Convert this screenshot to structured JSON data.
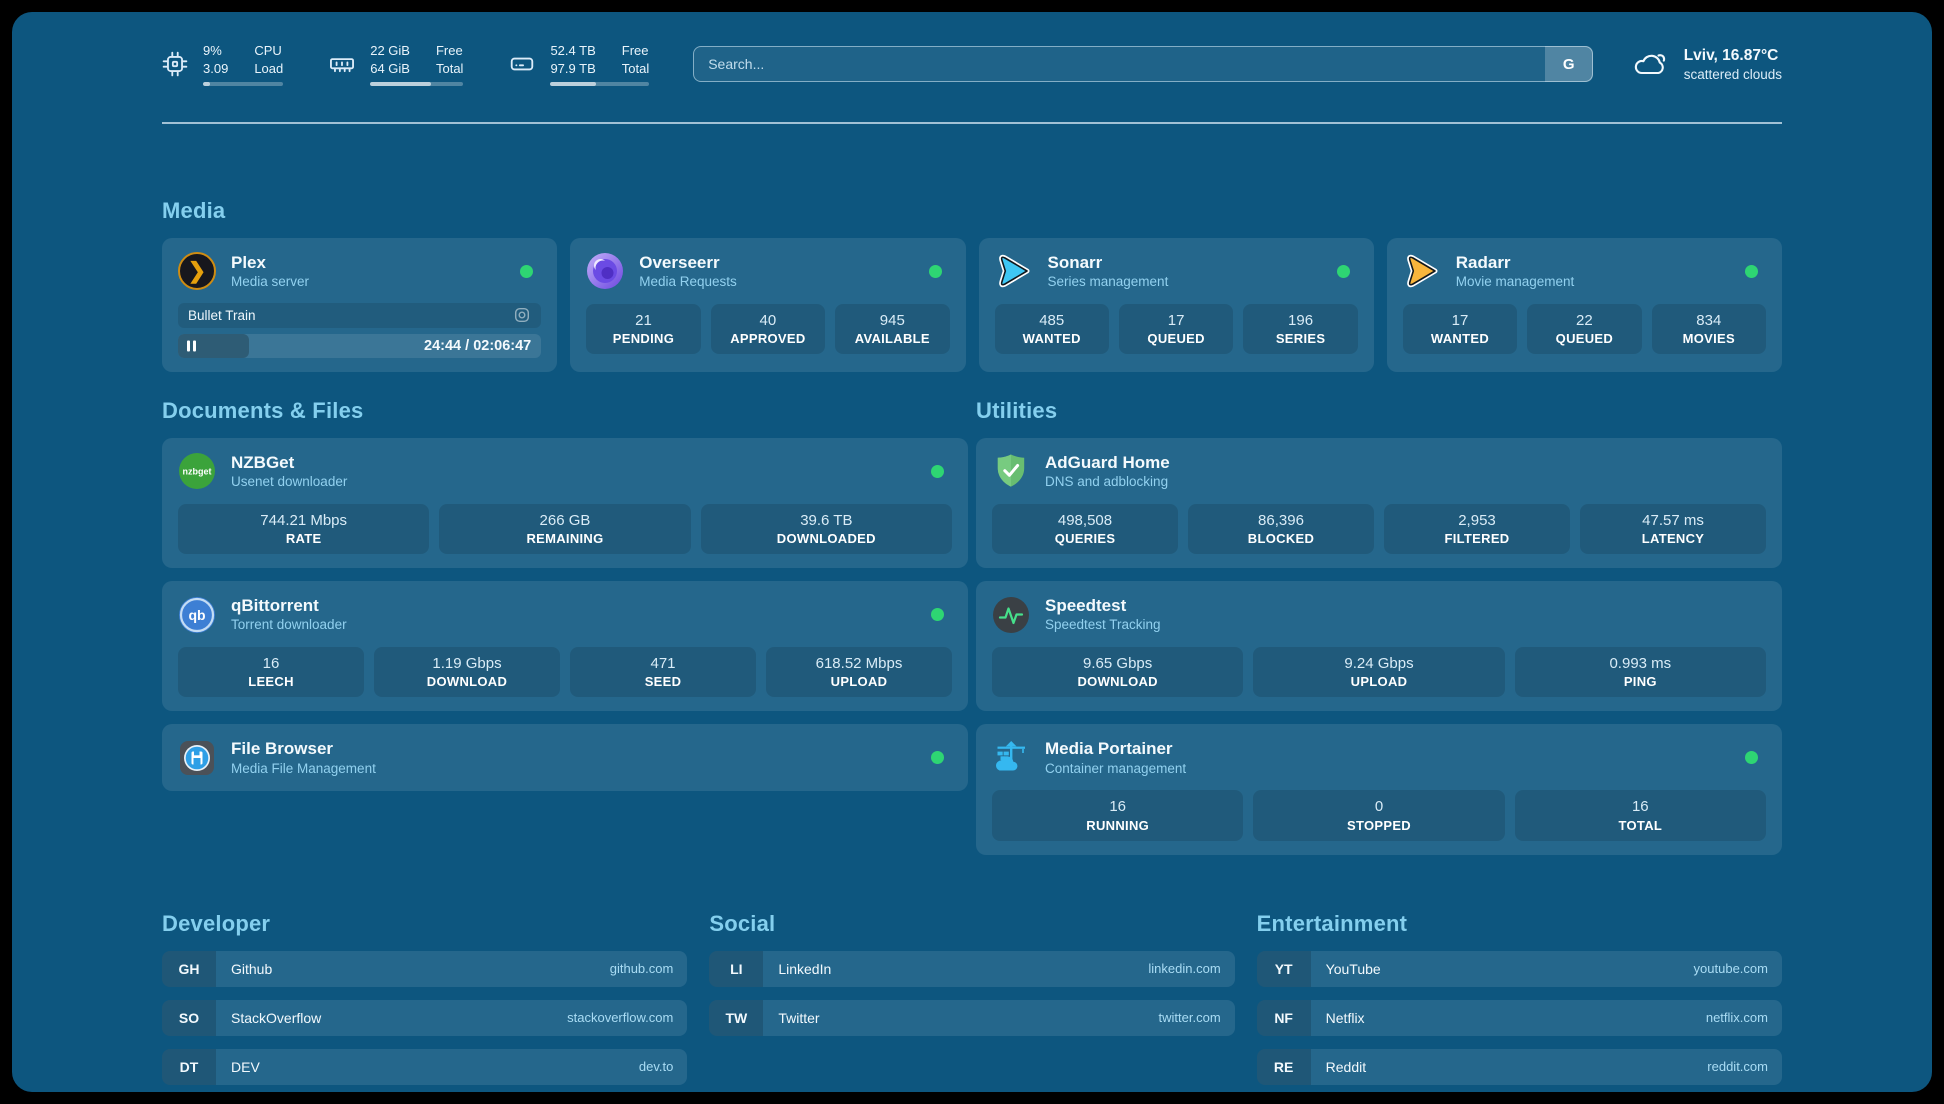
{
  "topbar": {
    "resources": {
      "cpu": {
        "value_top": "9%",
        "value_bottom": "3.09",
        "label_top": "CPU",
        "label_bottom": "Load",
        "progress_pct": 9
      },
      "memory": {
        "value_top": "22 GiB",
        "value_bottom": "64 GiB",
        "label_top": "Free",
        "label_bottom": "Total",
        "progress_pct": 65
      },
      "disk": {
        "value_top": "52.4 TB",
        "value_bottom": "97.9 TB",
        "label_top": "Free",
        "label_bottom": "Total",
        "progress_pct": 46
      }
    },
    "search": {
      "placeholder": "Search...",
      "provider_button": "G"
    },
    "weather": {
      "line1": "Lviv, 16.87°C",
      "line2": "scattered clouds"
    }
  },
  "media": {
    "heading": "Media",
    "plex": {
      "title": "Plex",
      "subtitle": "Media server",
      "now_playing": "Bullet Train",
      "time": "24:44 / 02:06:47",
      "progress_pct": 19.5,
      "glyph": "❯"
    },
    "overseerr": {
      "title": "Overseerr",
      "subtitle": "Media Requests",
      "stats": [
        {
          "value": "21",
          "label": "PENDING"
        },
        {
          "value": "40",
          "label": "APPROVED"
        },
        {
          "value": "945",
          "label": "AVAILABLE"
        }
      ]
    },
    "sonarr": {
      "title": "Sonarr",
      "subtitle": "Series management",
      "stats": [
        {
          "value": "485",
          "label": "WANTED"
        },
        {
          "value": "17",
          "label": "QUEUED"
        },
        {
          "value": "196",
          "label": "SERIES"
        }
      ]
    },
    "radarr": {
      "title": "Radarr",
      "subtitle": "Movie management",
      "stats": [
        {
          "value": "17",
          "label": "WANTED"
        },
        {
          "value": "22",
          "label": "QUEUED"
        },
        {
          "value": "834",
          "label": "MOVIES"
        }
      ]
    }
  },
  "documents": {
    "heading": "Documents & Files",
    "nzbget": {
      "title": "NZBGet",
      "subtitle": "Usenet downloader",
      "glyph": "nzbget",
      "stats": [
        {
          "value": "744.21 Mbps",
          "label": "RATE"
        },
        {
          "value": "266 GB",
          "label": "REMAINING"
        },
        {
          "value": "39.6 TB",
          "label": "DOWNLOADED"
        }
      ]
    },
    "qbittorrent": {
      "title": "qBittorrent",
      "subtitle": "Torrent downloader",
      "glyph": "qb",
      "stats": [
        {
          "value": "16",
          "label": "LEECH"
        },
        {
          "value": "1.19 Gbps",
          "label": "DOWNLOAD"
        },
        {
          "value": "471",
          "label": "SEED"
        },
        {
          "value": "618.52 Mbps",
          "label": "UPLOAD"
        }
      ]
    },
    "filebrowser": {
      "title": "File Browser",
      "subtitle": "Media File Management"
    }
  },
  "utilities": {
    "heading": "Utilities",
    "adguard": {
      "title": "AdGuard Home",
      "subtitle": "DNS and adblocking",
      "stats": [
        {
          "value": "498,508",
          "label": "QUERIES"
        },
        {
          "value": "86,396",
          "label": "BLOCKED"
        },
        {
          "value": "2,953",
          "label": "FILTERED"
        },
        {
          "value": "47.57 ms",
          "label": "LATENCY"
        }
      ]
    },
    "speedtest": {
      "title": "Speedtest",
      "subtitle": "Speedtest Tracking",
      "stats": [
        {
          "value": "9.65 Gbps",
          "label": "DOWNLOAD"
        },
        {
          "value": "9.24 Gbps",
          "label": "UPLOAD"
        },
        {
          "value": "0.993 ms",
          "label": "PING"
        }
      ]
    },
    "portainer": {
      "title": "Media Portainer",
      "subtitle": "Container management",
      "stats": [
        {
          "value": "16",
          "label": "RUNNING"
        },
        {
          "value": "0",
          "label": "STOPPED"
        },
        {
          "value": "16",
          "label": "TOTAL"
        }
      ]
    }
  },
  "bookmarks": {
    "developer": {
      "heading": "Developer",
      "items": [
        {
          "abbr": "GH",
          "name": "Github",
          "domain": "github.com"
        },
        {
          "abbr": "SO",
          "name": "StackOverflow",
          "domain": "stackoverflow.com"
        },
        {
          "abbr": "DT",
          "name": "DEV",
          "domain": "dev.to"
        }
      ]
    },
    "social": {
      "heading": "Social",
      "items": [
        {
          "abbr": "LI",
          "name": "LinkedIn",
          "domain": "linkedin.com"
        },
        {
          "abbr": "TW",
          "name": "Twitter",
          "domain": "twitter.com"
        }
      ]
    },
    "entertainment": {
      "heading": "Entertainment",
      "items": [
        {
          "abbr": "YT",
          "name": "YouTube",
          "domain": "youtube.com"
        },
        {
          "abbr": "NF",
          "name": "Netflix",
          "domain": "netflix.com"
        },
        {
          "abbr": "RE",
          "name": "Reddit",
          "domain": "reddit.com"
        }
      ]
    }
  },
  "colors": {
    "background": "#0d567f",
    "status_green": "#2ed573",
    "heading": "#84cfee",
    "plex_amber": "#e5a00d"
  }
}
